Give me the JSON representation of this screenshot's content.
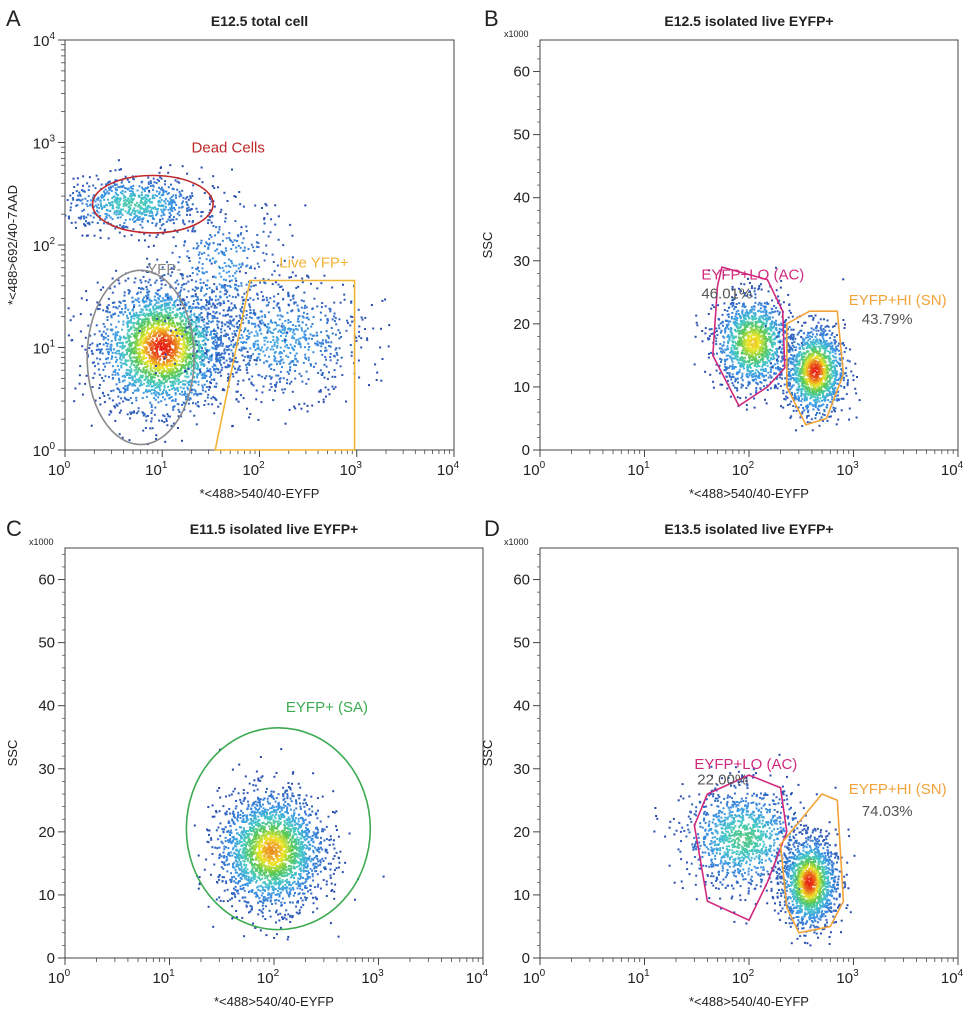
{
  "chart_data": [
    {
      "type": "scatter",
      "letter": "A",
      "title": "E12.5 total cell",
      "xlabel": "*<488>540/40-EYFP",
      "ylabel": "*<488>692/40-7AAD",
      "xscale": "log",
      "yscale": "log",
      "xlim": [
        1,
        10000
      ],
      "ylim": [
        1,
        10000
      ],
      "x_ticks": [
        {
          "base": "10",
          "exp": "0"
        },
        {
          "base": "10",
          "exp": "1"
        },
        {
          "base": "10",
          "exp": "2"
        },
        {
          "base": "10",
          "exp": "3"
        },
        {
          "base": "10",
          "exp": "4"
        }
      ],
      "y_ticks": [
        {
          "base": "10",
          "exp": "0"
        },
        {
          "base": "10",
          "exp": "1"
        },
        {
          "base": "10",
          "exp": "2"
        },
        {
          "base": "10",
          "exp": "3"
        },
        {
          "base": "10",
          "exp": "4"
        }
      ],
      "y_multiplier": "",
      "clusters": [
        {
          "cx": 10,
          "cy": 10,
          "sx": 0.32,
          "sy": 0.3,
          "n": 2600,
          "peak": 1.0
        },
        {
          "cx": 5,
          "cy": 250,
          "sx": 0.35,
          "sy": 0.13,
          "n": 700,
          "peak": 0.55
        },
        {
          "cx": 150,
          "cy": 12,
          "sx": 0.45,
          "sy": 0.28,
          "n": 800,
          "peak": 0.35
        },
        {
          "cx": 40,
          "cy": 60,
          "sx": 0.35,
          "sy": 0.35,
          "n": 400,
          "peak": 0.3
        }
      ],
      "gates": [
        {
          "name": "Dead Cells",
          "shape": "ellipse",
          "color": "#c0292b",
          "center": [
            8,
            250
          ],
          "radii_log": [
            0.62,
            0.28
          ],
          "label_at": [
            20,
            800
          ]
        },
        {
          "name": "YFP-",
          "shape": "ellipse",
          "color": "#8a8a8a",
          "center": [
            6,
            8
          ],
          "radii_log": [
            0.55,
            0.85
          ],
          "label_at": [
            7,
            52
          ]
        },
        {
          "name": "Live YFP+",
          "shape": "polygon",
          "color": "#f2b233",
          "points": [
            [
              35,
              1
            ],
            [
              80,
              45
            ],
            [
              950,
              45
            ],
            [
              950,
              1
            ]
          ],
          "label_at": [
            160,
            60
          ]
        }
      ]
    },
    {
      "type": "scatter",
      "letter": "B",
      "title": "E12.5 isolated live EYFP+",
      "xlabel": "*<488>540/40-EYFP",
      "ylabel": "SSC",
      "xscale": "log",
      "yscale": "linear",
      "xlim": [
        1,
        10000
      ],
      "ylim": [
        0,
        65
      ],
      "x_ticks": [
        {
          "base": "10",
          "exp": "0"
        },
        {
          "base": "10",
          "exp": "1"
        },
        {
          "base": "10",
          "exp": "2"
        },
        {
          "base": "10",
          "exp": "3"
        },
        {
          "base": "10",
          "exp": "4"
        }
      ],
      "y_ticks": [
        0,
        10,
        20,
        30,
        40,
        50,
        60
      ],
      "y_multiplier": "x1000",
      "clusters": [
        {
          "cx": 110,
          "cy": 17,
          "sx": 0.18,
          "sy": 3.6,
          "n": 1300,
          "peak": 0.85
        },
        {
          "cx": 430,
          "cy": 12.5,
          "sx": 0.14,
          "sy": 3.4,
          "n": 1300,
          "peak": 1.0
        }
      ],
      "gates": [
        {
          "name": "EYFP+LO (AC)",
          "shape": "polygon",
          "color": "#d0297e",
          "points": [
            [
              55,
              29
            ],
            [
              150,
              27
            ],
            [
              210,
              22
            ],
            [
              220,
              13
            ],
            [
              150,
              10
            ],
            [
              80,
              7
            ],
            [
              45,
              15
            ],
            [
              50,
              26
            ]
          ],
          "label_at": [
            35,
            27
          ],
          "pct": "46.01%",
          "pct_at": [
            35,
            24
          ]
        },
        {
          "name": "EYFP+HI (SN)",
          "shape": "polygon",
          "color": "#f2a33a",
          "points": [
            [
              230,
              20
            ],
            [
              380,
              22
            ],
            [
              700,
              22
            ],
            [
              800,
              12
            ],
            [
              550,
              5
            ],
            [
              350,
              4
            ],
            [
              230,
              10
            ]
          ],
          "label_at": [
            900,
            23
          ],
          "pct": "43.79%",
          "pct_at": [
            1200,
            20
          ]
        }
      ]
    },
    {
      "type": "scatter",
      "letter": "C",
      "title": "E11.5 isolated live EYFP+",
      "xlabel": "*<488>540/40-EYFP",
      "ylabel": "SSC",
      "xscale": "log",
      "yscale": "linear",
      "xlim": [
        1,
        10000
      ],
      "ylim": [
        0,
        65
      ],
      "x_ticks": [
        {
          "base": "10",
          "exp": "0"
        },
        {
          "base": "10",
          "exp": "1"
        },
        {
          "base": "10",
          "exp": "2"
        },
        {
          "base": "10",
          "exp": "3"
        },
        {
          "base": "10",
          "exp": "4"
        }
      ],
      "y_ticks": [
        0,
        10,
        20,
        30,
        40,
        50,
        60
      ],
      "y_multiplier": "x1000",
      "clusters": [
        {
          "cx": 95,
          "cy": 17,
          "sx": 0.25,
          "sy": 4.5,
          "n": 2300,
          "peak": 0.9
        }
      ],
      "gates": [
        {
          "name": "EYFP+ (SA)",
          "shape": "ellipse",
          "color": "#3dab52",
          "center": [
            110,
            20.5
          ],
          "radii_log": [
            0.88,
            16
          ],
          "label_at": [
            130,
            39
          ]
        }
      ]
    },
    {
      "type": "scatter",
      "letter": "D",
      "title": "E13.5 isolated live EYFP+",
      "xlabel": "*<488>540/40-EYFP",
      "ylabel": "SSC",
      "xscale": "log",
      "yscale": "linear",
      "xlim": [
        1,
        10000
      ],
      "ylim": [
        0,
        65
      ],
      "x_ticks": [
        {
          "base": "10",
          "exp": "0"
        },
        {
          "base": "10",
          "exp": "1"
        },
        {
          "base": "10",
          "exp": "2"
        },
        {
          "base": "10",
          "exp": "3"
        },
        {
          "base": "10",
          "exp": "4"
        }
      ],
      "y_ticks": [
        0,
        10,
        20,
        30,
        40,
        50,
        60
      ],
      "y_multiplier": "x1000",
      "clusters": [
        {
          "cx": 90,
          "cy": 19,
          "sx": 0.28,
          "sy": 4.0,
          "n": 1100,
          "peak": 0.6
        },
        {
          "cx": 380,
          "cy": 12,
          "sx": 0.13,
          "sy": 3.5,
          "n": 1500,
          "peak": 1.0
        }
      ],
      "gates": [
        {
          "name": "EYFP+LO (AC)",
          "shape": "polygon",
          "color": "#d0297e",
          "points": [
            [
              40,
              26
            ],
            [
              100,
              29
            ],
            [
              200,
              27
            ],
            [
              230,
              20
            ],
            [
              150,
              12
            ],
            [
              100,
              6
            ],
            [
              40,
              9
            ],
            [
              30,
              21
            ]
          ],
          "label_at": [
            30,
            30
          ],
          "pct": "22.00%",
          "pct_at": [
            32,
            27.5
          ]
        },
        {
          "name": "EYFP+HI (SN)",
          "shape": "polygon",
          "color": "#f2a33a",
          "points": [
            [
              200,
              18
            ],
            [
              500,
              26
            ],
            [
              700,
              25
            ],
            [
              800,
              9
            ],
            [
              600,
              5
            ],
            [
              300,
              4
            ],
            [
              230,
              8
            ]
          ],
          "label_at": [
            900,
            26
          ],
          "pct": "74.03%",
          "pct_at": [
            1200,
            22.5
          ]
        }
      ]
    }
  ]
}
